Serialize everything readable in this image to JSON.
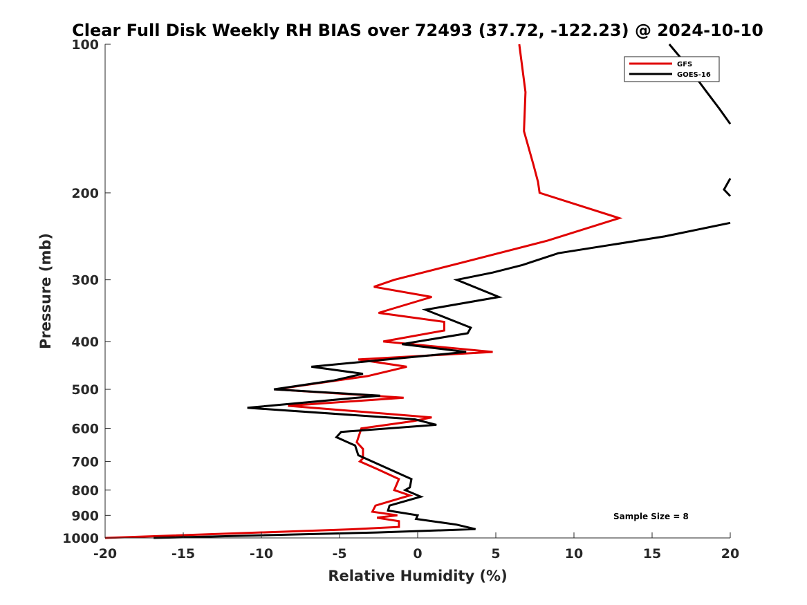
{
  "chart_data": {
    "type": "line",
    "title": "Clear Full Disk Weekly RH BIAS over 72493 (37.72, -122.23) @ 2024-10-10",
    "xlabel": "Relative Humidity (%)",
    "ylabel": "Pressure (mb)",
    "xlim": [
      -20,
      20
    ],
    "ylim": [
      1000,
      100
    ],
    "y_scale": "log",
    "y_reversed": true,
    "grid": false,
    "legend_position": "top-right",
    "xticks": [
      -20,
      -15,
      -10,
      -5,
      0,
      5,
      10,
      15,
      20
    ],
    "xtick_labels": [
      "-20",
      "-15",
      "-10",
      "-5",
      "0",
      "5",
      "10",
      "15",
      "20"
    ],
    "yticks": [
      100,
      200,
      300,
      400,
      500,
      600,
      700,
      800,
      900,
      1000
    ],
    "ytick_labels": [
      "100",
      "200",
      "300",
      "400",
      "500",
      "600",
      "700",
      "800",
      "900",
      "1000"
    ],
    "annotation": "Sample Size = 8",
    "series": [
      {
        "name": "GFS",
        "color": "#e00000",
        "points": [
          [
            6.5,
            100
          ],
          [
            6.9,
            125
          ],
          [
            6.8,
            150
          ],
          [
            7.4,
            175
          ],
          [
            7.7,
            190
          ],
          [
            7.8,
            200
          ],
          [
            12.9,
            225
          ],
          [
            8.3,
            250
          ],
          [
            3.2,
            275
          ],
          [
            -1.5,
            300
          ],
          [
            -2.8,
            310
          ],
          [
            0.9,
            325
          ],
          [
            -2.5,
            350
          ],
          [
            1.7,
            365
          ],
          [
            1.7,
            380
          ],
          [
            -2.2,
            400
          ],
          [
            4.8,
            420
          ],
          [
            -3.8,
            435
          ],
          [
            -0.7,
            450
          ],
          [
            -3.2,
            470
          ],
          [
            -9.1,
            500
          ],
          [
            -0.9,
            520
          ],
          [
            -8.3,
            540
          ],
          [
            0.9,
            570
          ],
          [
            -0.3,
            580
          ],
          [
            -3.6,
            600
          ],
          [
            -3.9,
            640
          ],
          [
            -3.5,
            660
          ],
          [
            -3.5,
            690
          ],
          [
            -3.7,
            700
          ],
          [
            -2.6,
            725
          ],
          [
            -1.2,
            760
          ],
          [
            -1.5,
            800
          ],
          [
            -0.5,
            820
          ],
          [
            -2.7,
            860
          ],
          [
            -2.9,
            885
          ],
          [
            -1.3,
            900
          ],
          [
            -2.6,
            910
          ],
          [
            -1.2,
            925
          ],
          [
            -1.2,
            950
          ],
          [
            -4.0,
            960
          ],
          [
            -20,
            1000
          ]
        ]
      },
      {
        "name": "GOES-16",
        "color": "#000000",
        "points": [
          [
            16.1,
            100
          ],
          [
            17.2,
            110
          ],
          [
            18.5,
            125
          ],
          [
            19.3,
            135
          ],
          [
            20,
            145
          ],
          [
            null,
            null
          ],
          [
            20,
            187
          ],
          [
            19.6,
            197
          ],
          [
            20,
            203
          ],
          [
            null,
            null
          ],
          [
            20,
            230
          ],
          [
            15.8,
            245
          ],
          [
            9.0,
            265
          ],
          [
            6.7,
            280
          ],
          [
            4.8,
            290
          ],
          [
            2.5,
            300
          ],
          [
            5.2,
            325
          ],
          [
            0.5,
            345
          ],
          [
            3.4,
            375
          ],
          [
            3.2,
            385
          ],
          [
            -1.0,
            405
          ],
          [
            3.1,
            420
          ],
          [
            -6.8,
            450
          ],
          [
            -3.5,
            465
          ],
          [
            -5.4,
            480
          ],
          [
            -9.2,
            500
          ],
          [
            -2.4,
            515
          ],
          [
            -10.9,
            545
          ],
          [
            -0.2,
            575
          ],
          [
            1.2,
            590
          ],
          [
            -4.9,
            610
          ],
          [
            -5.2,
            625
          ],
          [
            -4.0,
            650
          ],
          [
            -3.8,
            680
          ],
          [
            -0.4,
            760
          ],
          [
            -0.5,
            790
          ],
          [
            -0.8,
            800
          ],
          [
            0.2,
            825
          ],
          [
            -1.8,
            860
          ],
          [
            -1.9,
            880
          ],
          [
            0,
            900
          ],
          [
            -0.1,
            915
          ],
          [
            2.5,
            940
          ],
          [
            3.7,
            960
          ],
          [
            -2.6,
            975
          ],
          [
            -16.9,
            1000
          ]
        ]
      }
    ]
  }
}
